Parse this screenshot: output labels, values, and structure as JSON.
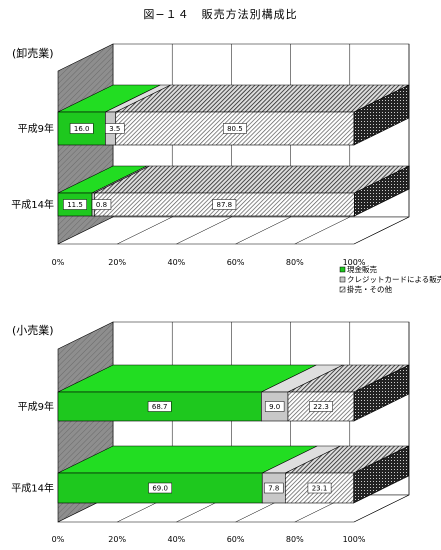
{
  "title": "図−１４　販売方法別構成比",
  "chart_data": [
    {
      "type": "bar",
      "orientation": "horizontal",
      "stacked": "percent",
      "style": "3d",
      "section_label": "(卸売業)",
      "categories": [
        "平成9年",
        "平成14年"
      ],
      "series": [
        {
          "name": "現金販売",
          "values": [
            16.0,
            11.5
          ],
          "labels": [
            "16.0",
            "11.5"
          ]
        },
        {
          "name": "クレジットカードによる販売",
          "values": [
            3.5,
            0.8
          ],
          "labels": [
            "3.5",
            "0.8"
          ]
        },
        {
          "name": "掛売・その他",
          "values": [
            80.5,
            87.8
          ],
          "labels": [
            "80.5",
            "87.8"
          ]
        }
      ],
      "xlim": [
        0,
        100
      ],
      "x_ticks": [
        "0%",
        "20%",
        "40%",
        "60%",
        "80%",
        "100%"
      ],
      "legend_position": "bottom-right"
    },
    {
      "type": "bar",
      "orientation": "horizontal",
      "stacked": "percent",
      "style": "3d",
      "section_label": "(小売業)",
      "categories": [
        "平成9年",
        "平成14年"
      ],
      "series": [
        {
          "name": "現金販売",
          "values": [
            68.7,
            69.0
          ],
          "labels": [
            "68.7",
            "69.0"
          ]
        },
        {
          "name": "クレジットカードによる販売",
          "values": [
            9.0,
            7.8
          ],
          "labels": [
            "9.0",
            "7.8"
          ]
        },
        {
          "name": "掛売・その他",
          "values": [
            22.3,
            23.1
          ],
          "labels": [
            "22.3",
            "23.1"
          ]
        }
      ],
      "xlim": [
        0,
        100
      ],
      "x_ticks": [
        "0%",
        "20%",
        "40%",
        "60%",
        "80%",
        "100%"
      ]
    }
  ],
  "legend": [
    {
      "label": "現金販売",
      "color": "#1ec81e"
    },
    {
      "label": "クレジットカードによる販売",
      "color": "#c8c8c8"
    },
    {
      "label": "掛売・その他",
      "color": "hatch"
    }
  ],
  "colors": {
    "cash": "#1ec81e",
    "cash_top": "#22dd22",
    "credit": "#c8c8c8",
    "credit_top": "#dedede",
    "wall": "#9a9a9a",
    "floor": "#c0c0c0"
  }
}
